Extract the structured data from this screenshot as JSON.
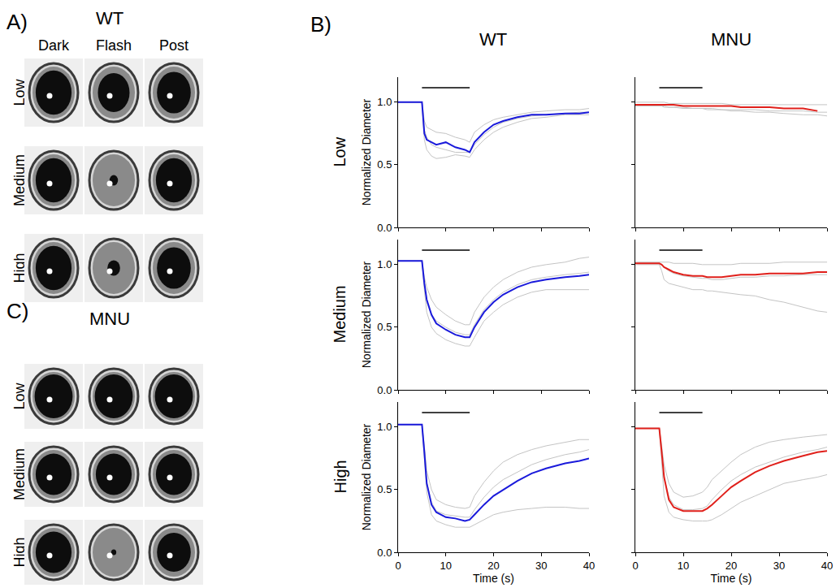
{
  "panel_labels": [
    "A)",
    "B)",
    "C)"
  ],
  "eye_panels": [
    {
      "title": "WT",
      "columns": [
        "Dark",
        "Flash",
        "Post"
      ],
      "rows": [
        "Low",
        "Medium",
        "High"
      ],
      "pupil": [
        [
          0.85,
          0.75,
          0.8
        ],
        [
          0.85,
          0.2,
          0.85
        ],
        [
          0.85,
          0.3,
          0.8
        ]
      ]
    },
    {
      "title": "MNU",
      "rows": [
        "Low",
        "Medium",
        "High"
      ],
      "pupil": [
        [
          0.9,
          0.9,
          0.9
        ],
        [
          0.85,
          0.85,
          0.85
        ],
        [
          0.85,
          0.12,
          0.8
        ]
      ]
    }
  ],
  "plot_panel": {
    "columns": [
      "WT",
      "MNU"
    ],
    "rows": [
      "Low",
      "Medium",
      "High"
    ]
  },
  "chart_data": [
    {
      "type": "line",
      "xlim": [
        0,
        40
      ],
      "ylim": [
        0,
        1.2
      ],
      "xticks": [
        0,
        10,
        20,
        30,
        40
      ],
      "yticks": [
        {
          "value": 0,
          "label": "0.0"
        },
        {
          "value": 0.5,
          "label": "0.5"
        },
        {
          "value": 1,
          "label": "1.0"
        }
      ],
      "tick_labels": "y",
      "ylabel": "Normalized Diameter",
      "stimulus": [
        5,
        15
      ],
      "x": [
        0,
        3,
        5,
        5.5,
        6,
        7,
        8,
        10,
        12,
        14,
        15,
        16,
        18,
        20,
        22,
        25,
        28,
        31,
        35,
        38,
        40
      ],
      "series": [
        {
          "color": "#c4c4c4",
          "values": [
            1,
            1,
            1,
            0.7,
            0.62,
            0.57,
            0.55,
            0.56,
            0.58,
            0.57,
            0.56,
            0.62,
            0.7,
            0.76,
            0.8,
            0.84,
            0.87,
            0.88,
            0.9,
            0.9,
            0.9
          ]
        },
        {
          "color": "#c4c4c4",
          "values": [
            1,
            1,
            1,
            0.78,
            0.72,
            0.66,
            0.64,
            0.62,
            0.6,
            0.6,
            0.6,
            0.66,
            0.74,
            0.8,
            0.84,
            0.87,
            0.89,
            0.9,
            0.91,
            0.92,
            0.92
          ]
        },
        {
          "color": "#c4c4c4",
          "values": [
            1,
            1,
            1,
            0.85,
            0.8,
            0.78,
            0.76,
            0.75,
            0.72,
            0.7,
            0.68,
            0.76,
            0.82,
            0.86,
            0.88,
            0.9,
            0.92,
            0.93,
            0.94,
            0.94,
            0.95
          ]
        },
        {
          "color": "#1a1adb",
          "values": [
            1,
            1,
            1,
            0.75,
            0.7,
            0.68,
            0.66,
            0.68,
            0.64,
            0.62,
            0.6,
            0.68,
            0.76,
            0.82,
            0.85,
            0.88,
            0.9,
            0.9,
            0.91,
            0.91,
            0.92
          ]
        }
      ]
    },
    {
      "type": "line",
      "xlim": [
        0,
        40
      ],
      "ylim": [
        0,
        1.2
      ],
      "xticks": [
        0,
        10,
        20,
        30,
        40
      ],
      "yticks": [
        {
          "value": 0,
          "label": "0.0"
        },
        {
          "value": 0.5,
          "label": "0.5"
        },
        {
          "value": 1,
          "label": "1.0"
        }
      ],
      "tick_labels": false,
      "stimulus": [
        5,
        14
      ],
      "x": [
        0,
        3,
        5,
        5.5,
        6,
        7,
        8,
        10,
        12,
        14,
        15,
        16,
        18,
        20,
        22,
        25,
        28,
        31,
        35,
        38,
        40
      ],
      "series": [
        {
          "color": "#c4c4c4",
          "values": [
            1,
            1,
            1,
            1,
            1,
            0.99,
            0.99,
            0.99,
            0.99,
            0.99,
            0.99,
            0.99,
            0.99,
            0.98,
            0.98,
            0.98,
            0.98,
            0.98,
            0.98,
            0.98,
            0.98
          ]
        },
        {
          "color": "#c4c4c4",
          "values": [
            0.98,
            0.98,
            0.98,
            0.97,
            0.97,
            0.96,
            0.96,
            0.95,
            0.95,
            0.95,
            0.94,
            0.94,
            0.94,
            0.93,
            0.93,
            0.92,
            0.92,
            0.91,
            0.9,
            0.9,
            0.89
          ]
        },
        {
          "color": "#c4c4c4",
          "values": [
            0.97,
            0.97,
            0.97,
            0.97,
            0.96,
            0.96,
            0.96,
            0.96,
            0.95,
            0.95,
            0.95,
            0.95,
            0.94,
            0.94,
            0.94,
            0.94,
            0.93,
            0.93,
            0.93,
            0.92,
            0.92
          ]
        },
        {
          "color": "#e0201b",
          "values": [
            0.98,
            0.98,
            0.98,
            0.98,
            0.98,
            0.98,
            0.98,
            0.97,
            0.97,
            0.97,
            0.97,
            0.97,
            0.97,
            0.97,
            0.96,
            0.96,
            0.96,
            0.95,
            0.95,
            0.93,
            null
          ]
        }
      ]
    },
    {
      "type": "line",
      "xlim": [
        0,
        40
      ],
      "ylim": [
        0,
        1.2
      ],
      "xticks": [
        0,
        10,
        20,
        30,
        40
      ],
      "yticks": [
        {
          "value": 0,
          "label": "0.0"
        },
        {
          "value": 0.5,
          "label": "0.5"
        },
        {
          "value": 1,
          "label": "1.0"
        }
      ],
      "tick_labels": "y",
      "ylabel": "Normalized Diameter",
      "stimulus": [
        5,
        15
      ],
      "x": [
        0,
        3,
        5,
        5.5,
        6,
        7,
        8,
        10,
        12,
        14,
        15,
        16,
        18,
        20,
        22,
        25,
        28,
        31,
        35,
        38,
        40
      ],
      "series": [
        {
          "color": "#c4c4c4",
          "values": [
            1.03,
            1.03,
            1.03,
            0.8,
            0.62,
            0.5,
            0.45,
            0.4,
            0.37,
            0.35,
            0.35,
            0.42,
            0.55,
            0.62,
            0.68,
            0.74,
            0.78,
            0.8,
            0.8,
            0.8,
            0.8
          ]
        },
        {
          "color": "#c4c4c4",
          "values": [
            1.03,
            1.03,
            1.03,
            0.9,
            0.82,
            0.72,
            0.66,
            0.6,
            0.55,
            0.52,
            0.52,
            0.62,
            0.74,
            0.82,
            0.88,
            0.94,
            0.98,
            1.0,
            1.02,
            1.05,
            1.06
          ]
        },
        {
          "color": "#c4c4c4",
          "values": [
            1.03,
            1.03,
            1.03,
            0.85,
            0.7,
            0.6,
            0.55,
            0.5,
            0.46,
            0.44,
            0.44,
            0.52,
            0.64,
            0.72,
            0.78,
            0.84,
            0.88,
            0.9,
            0.92,
            0.93,
            0.94
          ]
        },
        {
          "color": "#1a1adb",
          "values": [
            1.03,
            1.03,
            1.03,
            0.85,
            0.72,
            0.6,
            0.53,
            0.48,
            0.44,
            0.42,
            0.42,
            0.5,
            0.62,
            0.7,
            0.76,
            0.82,
            0.86,
            0.88,
            0.9,
            0.91,
            0.92
          ]
        }
      ]
    },
    {
      "type": "line",
      "xlim": [
        0,
        40
      ],
      "ylim": [
        0,
        1.2
      ],
      "xticks": [
        0,
        10,
        20,
        30,
        40
      ],
      "yticks": [
        {
          "value": 0,
          "label": "0.0"
        },
        {
          "value": 0.5,
          "label": "0.5"
        },
        {
          "value": 1,
          "label": "1.0"
        }
      ],
      "tick_labels": false,
      "stimulus": [
        5,
        14
      ],
      "x": [
        0,
        3,
        5,
        5.5,
        6,
        7,
        8,
        10,
        12,
        14,
        15,
        16,
        18,
        20,
        22,
        25,
        28,
        31,
        35,
        38,
        40
      ],
      "series": [
        {
          "color": "#c4c4c4",
          "values": [
            1.02,
            1.02,
            1.02,
            1.02,
            1.02,
            1.02,
            1.01,
            1.01,
            1.01,
            1.0,
            1.0,
            1.0,
            1.0,
            1.0,
            1.01,
            1.01,
            1.01,
            1.02,
            1.02,
            1.02,
            1.02
          ]
        },
        {
          "color": "#c4c4c4",
          "values": [
            1.0,
            1.0,
            1.0,
            0.95,
            0.88,
            0.85,
            0.84,
            0.82,
            0.8,
            0.8,
            0.79,
            0.79,
            0.78,
            0.77,
            0.76,
            0.75,
            0.72,
            0.7,
            0.66,
            0.63,
            0.62
          ]
        },
        {
          "color": "#c4c4c4",
          "values": [
            1.01,
            1.01,
            1.01,
            1.0,
            0.98,
            0.95,
            0.93,
            0.91,
            0.9,
            0.89,
            0.89,
            0.88,
            0.88,
            0.89,
            0.9,
            0.9,
            0.91,
            0.91,
            0.92,
            0.92,
            0.92
          ]
        },
        {
          "color": "#e0201b",
          "values": [
            1.01,
            1.01,
            1.01,
            1.0,
            0.98,
            0.96,
            0.94,
            0.92,
            0.91,
            0.91,
            0.9,
            0.9,
            0.9,
            0.91,
            0.92,
            0.92,
            0.93,
            0.93,
            0.93,
            0.94,
            0.94
          ]
        }
      ]
    },
    {
      "type": "line",
      "xlim": [
        0,
        40
      ],
      "ylim": [
        0,
        1.2
      ],
      "xticks": [
        0,
        10,
        20,
        30,
        40
      ],
      "yticks": [
        {
          "value": 0,
          "label": "0.0"
        },
        {
          "value": 0.5,
          "label": "0.5"
        },
        {
          "value": 1,
          "label": "1.0"
        }
      ],
      "tick_labels": true,
      "ylabel": "Normalized Diameter",
      "xlabel": "Time (s)",
      "stimulus": [
        5,
        15
      ],
      "x": [
        0,
        3,
        5,
        5.5,
        6,
        7,
        8,
        10,
        12,
        14,
        15,
        16,
        18,
        20,
        22,
        25,
        28,
        31,
        35,
        38,
        40
      ],
      "series": [
        {
          "color": "#c4c4c4",
          "values": [
            1.02,
            1.02,
            1.02,
            0.85,
            0.65,
            0.5,
            0.42,
            0.38,
            0.36,
            0.35,
            0.36,
            0.45,
            0.56,
            0.65,
            0.72,
            0.78,
            0.82,
            0.85,
            0.88,
            0.9,
            0.9
          ]
        },
        {
          "color": "#c4c4c4",
          "values": [
            1.02,
            1.02,
            1.02,
            0.75,
            0.48,
            0.3,
            0.25,
            0.22,
            0.2,
            0.2,
            0.2,
            0.22,
            0.26,
            0.3,
            0.32,
            0.34,
            0.35,
            0.36,
            0.36,
            0.35,
            0.35
          ]
        },
        {
          "color": "#c4c4c4",
          "values": [
            1.02,
            1.02,
            1.02,
            0.8,
            0.56,
            0.4,
            0.33,
            0.3,
            0.29,
            0.28,
            0.28,
            0.34,
            0.44,
            0.52,
            0.58,
            0.64,
            0.7,
            0.74,
            0.78,
            0.8,
            0.82
          ]
        },
        {
          "color": "#1a1adb",
          "values": [
            1.02,
            1.02,
            1.02,
            0.8,
            0.55,
            0.38,
            0.32,
            0.28,
            0.27,
            0.25,
            0.26,
            0.3,
            0.38,
            0.45,
            0.5,
            0.57,
            0.63,
            0.67,
            0.71,
            0.73,
            0.75
          ]
        }
      ]
    },
    {
      "type": "line",
      "xlim": [
        0,
        40
      ],
      "ylim": [
        0,
        1.2
      ],
      "xticks": [
        0,
        10,
        20,
        30,
        40
      ],
      "yticks": [
        {
          "value": 0,
          "label": "0.0"
        },
        {
          "value": 0.5,
          "label": "0.5"
        },
        {
          "value": 1,
          "label": "1.0"
        }
      ],
      "tick_labels": "x",
      "xlabel": "Time (s)",
      "stimulus": [
        5,
        14
      ],
      "x": [
        0,
        3,
        5,
        5.5,
        6,
        7,
        8,
        10,
        12,
        14,
        15,
        16,
        18,
        20,
        22,
        25,
        28,
        31,
        35,
        38,
        40
      ],
      "series": [
        {
          "color": "#c4c4c4",
          "values": [
            0.99,
            0.99,
            0.99,
            0.85,
            0.7,
            0.55,
            0.48,
            0.44,
            0.45,
            0.48,
            0.52,
            0.58,
            0.65,
            0.72,
            0.78,
            0.84,
            0.88,
            0.9,
            0.92,
            0.93,
            0.94
          ]
        },
        {
          "color": "#c4c4c4",
          "values": [
            0.99,
            0.99,
            0.99,
            0.72,
            0.45,
            0.32,
            0.28,
            0.26,
            0.25,
            0.25,
            0.25,
            0.26,
            0.3,
            0.35,
            0.4,
            0.45,
            0.5,
            0.55,
            0.58,
            0.6,
            0.62
          ]
        },
        {
          "color": "#c4c4c4",
          "values": [
            0.99,
            0.99,
            0.99,
            0.8,
            0.6,
            0.44,
            0.38,
            0.34,
            0.34,
            0.35,
            0.37,
            0.42,
            0.5,
            0.57,
            0.62,
            0.68,
            0.72,
            0.76,
            0.8,
            0.82,
            0.84
          ]
        },
        {
          "color": "#e0201b",
          "values": [
            0.99,
            0.99,
            0.99,
            0.8,
            0.6,
            0.42,
            0.36,
            0.33,
            0.33,
            0.33,
            0.35,
            0.38,
            0.45,
            0.52,
            0.57,
            0.64,
            0.69,
            0.73,
            0.77,
            0.8,
            0.81
          ]
        }
      ]
    }
  ]
}
